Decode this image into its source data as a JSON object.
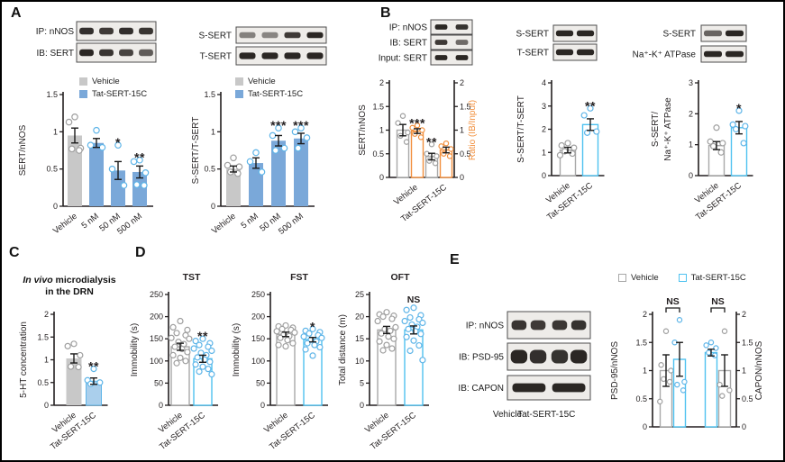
{
  "panels": {
    "A": "A",
    "B": "B",
    "C": "C",
    "D": "D",
    "E": "E"
  },
  "colors": {
    "gray_fill": "#c8c8c8",
    "blue_fill": "#7aa8d9",
    "light_blue_fill": "#aacfec",
    "gray_outline": "#a8a8a8",
    "blue_outline": "#4fc2f0",
    "orange": "#f2903e",
    "gray_point": "#9f9f9f",
    "blue_point": "#5fb5e8",
    "axis": "#231f20"
  },
  "panelC": {
    "title_italic": "In vivo",
    "title_rest": " microdialysis",
    "title_line2": "in the DRN"
  },
  "legends": {
    "a1": {
      "items": [
        {
          "label": "Vehicle",
          "swatch": "gray-fill"
        },
        {
          "label": "Tat-SERT-15C",
          "swatch": "blue-fill"
        }
      ]
    },
    "a2": {
      "items": [
        {
          "label": "Vehicle",
          "swatch": "gray-fill"
        },
        {
          "label": "Tat-SERT-15C",
          "swatch": "blue-fill"
        }
      ]
    },
    "e": {
      "items": [
        {
          "label": "Vehicle",
          "swatch": "gray-outline"
        },
        {
          "label": "Tat-SERT-15C",
          "swatch": "blue-outline"
        }
      ]
    }
  },
  "blots": [
    {
      "name": "A coIP blot",
      "rows": [
        {
          "label": "IP: nNOS",
          "bands": [
            0.95,
            0.85,
            0.95,
            0.9
          ]
        },
        {
          "label": "IB: SERT",
          "bands": [
            1,
            0.9,
            0.8,
            0.62
          ]
        }
      ]
    },
    {
      "name": "A surface blot",
      "rows": [
        {
          "label": "S-SERT",
          "bands": [
            0.35,
            0.32,
            0.85,
            1
          ]
        },
        {
          "label": "T-SERT",
          "bands": [
            1,
            1,
            1,
            1
          ]
        }
      ]
    },
    {
      "name": "B coIP blot",
      "rows": [
        {
          "label": "IP: nNOS",
          "bands": [
            1,
            0.92
          ]
        },
        {
          "label": "IB: SERT",
          "bands": [
            0.85,
            0.5
          ]
        },
        {
          "label": "Input: SERT",
          "bands": [
            1,
            1
          ]
        }
      ]
    },
    {
      "name": "B surface blot",
      "rows": [
        {
          "label": "S-SERT",
          "bands": [
            1,
            1
          ],
          "wide": true
        },
        {
          "label": "T-SERT",
          "bands": [
            1,
            1
          ],
          "wide": true
        }
      ]
    },
    {
      "name": "B membrane blot",
      "rows": [
        {
          "label": "S-SERT",
          "bands": [
            0.55,
            1
          ],
          "wide": true
        },
        {
          "label": "Na⁺-K⁺ ATPase",
          "bands": [
            1,
            1
          ],
          "wide": true
        }
      ]
    },
    {
      "name": "E coIP blot",
      "rows": [
        {
          "label": "IP: nNOS",
          "bands": [
            0.9,
            0.85,
            0.88,
            0.92
          ],
          "grouped": true
        },
        {
          "label": "IB: PSD-95",
          "bands": [
            1,
            0.95,
            0.92,
            1
          ],
          "grouped": true,
          "thick": true
        },
        {
          "label": "IB: CAPON",
          "bands": [
            1,
            1
          ],
          "wide": true
        }
      ],
      "xlabels": [
        "Vehicle",
        "Tat-SERT-15C"
      ]
    }
  ],
  "chart_data": [
    {
      "id": "A-sert-nnos",
      "type": "bar",
      "panel": "A",
      "ylabel": "SERT/nNOS",
      "ylim": [
        0,
        1.5
      ],
      "yticks": [
        0,
        0.5,
        1,
        1.5
      ],
      "categories": [
        "Vehicle",
        "5 nM",
        "50 nM",
        "500 nM"
      ],
      "bars": [
        {
          "style": "grayFill",
          "value": 0.95,
          "err": 0.1,
          "sig": "",
          "points": [
            1.2,
            1.13,
            0.78,
            0.77,
            0.75
          ],
          "pointStyle": "gray"
        },
        {
          "style": "blueFill",
          "value": 0.85,
          "err": 0.06,
          "sig": "",
          "points": [
            1.02,
            0.82,
            0.79
          ],
          "pointStyle": "blue"
        },
        {
          "style": "blueFill",
          "value": 0.48,
          "err": 0.12,
          "sig": "*",
          "points": [
            0.82,
            0.5,
            0.28
          ],
          "pointStyle": "blue"
        },
        {
          "style": "blueFill",
          "value": 0.46,
          "err": 0.08,
          "sig": "**",
          "points": [
            0.62,
            0.6,
            0.45,
            0.29,
            0.28
          ],
          "pointStyle": "blue"
        }
      ]
    },
    {
      "id": "A-ssert-tsert",
      "type": "bar",
      "panel": "A",
      "ylabel": "S-SERT/T-SERT",
      "ylim": [
        0,
        1.5
      ],
      "yticks": [
        0,
        0.5,
        1,
        1.5
      ],
      "categories": [
        "Vehicle",
        "5 nM",
        "50 nM",
        "500 nM"
      ],
      "bars": [
        {
          "style": "grayFill",
          "value": 0.5,
          "err": 0.04,
          "sig": "",
          "points": [
            0.65,
            0.55,
            0.53,
            0.46,
            0.44
          ],
          "pointStyle": "gray"
        },
        {
          "style": "blueFill",
          "value": 0.58,
          "err": 0.07,
          "sig": "",
          "points": [
            0.72,
            0.6,
            0.46
          ],
          "pointStyle": "blue"
        },
        {
          "style": "blueFill",
          "value": 0.88,
          "err": 0.07,
          "sig": "***",
          "points": [
            1.05,
            0.95,
            0.78,
            0.75
          ],
          "pointStyle": "blue"
        },
        {
          "style": "blueFill",
          "value": 0.91,
          "err": 0.07,
          "sig": "***",
          "points": [
            1.05,
            1.0,
            0.92,
            0.78
          ],
          "pointStyle": "blue"
        }
      ]
    },
    {
      "id": "B-sert-nnos-ratio",
      "type": "bar",
      "panel": "B",
      "ylabel": "SERT/nNOS",
      "ylabel2": "Ratio (IB/Input)",
      "ylabel2_color": "#f2903e",
      "ylim": [
        0,
        2
      ],
      "yticks": [
        0,
        0.5,
        1,
        1.5,
        2
      ],
      "yticks2": [
        0,
        0.5,
        1,
        1.5,
        2
      ],
      "categories": [
        "Vehicle",
        "Tat-SERT-15C"
      ],
      "bars": [
        {
          "style": "grayOutline",
          "value": 1.0,
          "err": 0.12,
          "sig": "",
          "points": [
            1.3,
            1.15,
            0.95,
            0.88,
            0.75
          ],
          "pointStyle": "gray"
        },
        {
          "style": "orangeOutline",
          "value": 0.98,
          "err": 0.05,
          "sig": "***",
          "points": [
            1.1,
            1.05,
            1.0,
            0.92,
            0.85
          ],
          "pointStyle": "orange"
        },
        {
          "style": "grayOutline",
          "value": 0.44,
          "err": 0.07,
          "sig": "**",
          "points": [
            0.7,
            0.5,
            0.45,
            0.35,
            0.3
          ],
          "pointStyle": "gray"
        },
        {
          "style": "orangeOutline",
          "value": 0.58,
          "err": 0.06,
          "sig": "",
          "points": [
            0.72,
            0.66,
            0.6,
            0.5,
            0.45
          ],
          "pointStyle": "orange"
        }
      ]
    },
    {
      "id": "B-ssert-tsert",
      "type": "bar",
      "panel": "B",
      "ylabel": "S-SERT/T-SERT",
      "ylim": [
        0,
        4
      ],
      "yticks": [
        0,
        1,
        2,
        3,
        4
      ],
      "categories": [
        "Vehicle",
        "Tat-SERT-15C"
      ],
      "bars": [
        {
          "style": "grayOutline",
          "value": 1.1,
          "err": 0.12,
          "sig": "",
          "points": [
            1.4,
            1.3,
            1.2,
            1.05,
            0.95,
            0.88
          ],
          "pointStyle": "gray"
        },
        {
          "style": "blueOutline",
          "value": 2.2,
          "err": 0.25,
          "sig": "**",
          "points": [
            2.9,
            2.6,
            1.9,
            1.85
          ],
          "pointStyle": "blue"
        }
      ]
    },
    {
      "id": "B-ssert-atpase",
      "type": "bar",
      "panel": "B",
      "ylabel": "S-SERT/",
      "ylabel_line2": "Na⁺-K⁺ ATPase",
      "ylim": [
        0,
        3
      ],
      "yticks": [
        0,
        1,
        2,
        3
      ],
      "categories": [
        "Vehicle",
        "Tat-SERT-15C"
      ],
      "bars": [
        {
          "style": "grayOutline",
          "value": 0.97,
          "err": 0.13,
          "sig": "",
          "points": [
            1.55,
            1.1,
            1.05,
            0.95,
            0.75
          ],
          "pointStyle": "gray"
        },
        {
          "style": "blueOutline",
          "value": 1.55,
          "err": 0.2,
          "sig": "*",
          "points": [
            2.1,
            1.65,
            1.6,
            1.5,
            1.05
          ],
          "pointStyle": "blue"
        }
      ]
    },
    {
      "id": "C-5ht",
      "type": "bar",
      "panel": "C",
      "ylabel": "5-HT concentration",
      "ylim": [
        0,
        2
      ],
      "yticks": [
        0,
        0.5,
        1,
        1.5,
        2
      ],
      "categories": [
        "Vehicle",
        "Tat-SERT-15C"
      ],
      "bars": [
        {
          "style": "grayFill",
          "value": 1.03,
          "err": 0.1,
          "sig": "",
          "points": [
            1.35,
            1.3,
            1.1,
            0.85,
            0.84
          ],
          "pointStyle": "gray"
        },
        {
          "style": "lightBlueFill",
          "value": 0.53,
          "err": 0.07,
          "sig": "**",
          "points": [
            0.8,
            0.55,
            0.5,
            0.47
          ],
          "pointStyle": "blue"
        }
      ]
    },
    {
      "id": "D-tst",
      "type": "bar",
      "panel": "D",
      "title": "TST",
      "ylabel": "Immobility (s)",
      "ylim": [
        0,
        250
      ],
      "yticks": [
        0,
        50,
        100,
        150,
        200,
        250
      ],
      "categories": [
        "Vehicle",
        "Tat-SERT-15C"
      ],
      "bars": [
        {
          "style": "grayOutline",
          "value": 132,
          "err": 8,
          "sig": "",
          "points": [
            190,
            176,
            170,
            163,
            158,
            152,
            150,
            143,
            138,
            132,
            127,
            120,
            113,
            107,
            100,
            95
          ],
          "pointStyle": "gray"
        },
        {
          "style": "blueOutline",
          "value": 105,
          "err": 8,
          "sig": "**",
          "points": [
            150,
            145,
            140,
            136,
            132,
            128,
            123,
            118,
            113,
            108,
            103,
            98,
            92,
            87,
            82,
            76,
            70
          ],
          "pointStyle": "blue"
        }
      ]
    },
    {
      "id": "D-fst",
      "type": "bar",
      "panel": "D",
      "title": "FST",
      "ylabel": "Immobility (s)",
      "ylim": [
        0,
        250
      ],
      "yticks": [
        0,
        50,
        100,
        150,
        200,
        250
      ],
      "categories": [
        "Vehicle",
        "Tat-SERT-15C"
      ],
      "bars": [
        {
          "style": "grayOutline",
          "value": 160,
          "err": 5,
          "sig": "",
          "points": [
            180,
            178,
            175,
            172,
            170,
            167,
            164,
            160,
            156,
            152,
            147,
            140,
            136,
            133
          ],
          "pointStyle": "gray"
        },
        {
          "style": "blueOutline",
          "value": 148,
          "err": 5,
          "sig": "*",
          "points": [
            172,
            168,
            165,
            162,
            158,
            155,
            152,
            148,
            144,
            140,
            136,
            131,
            126,
            112
          ],
          "pointStyle": "blue"
        }
      ]
    },
    {
      "id": "D-oft",
      "type": "bar",
      "panel": "D",
      "title": "OFT",
      "ylabel": "Total distance (m)",
      "ylim": [
        0,
        25
      ],
      "yticks": [
        0,
        5,
        10,
        15,
        20,
        25
      ],
      "categories": [
        "Vehicle",
        "Tat-SERT-15C"
      ],
      "bars": [
        {
          "style": "grayOutline",
          "value": 17,
          "err": 0.8,
          "sig": "",
          "points": [
            21,
            20.5,
            20.2,
            20,
            19.5,
            19,
            17.6,
            17.2,
            16.8,
            16.2,
            15.5,
            15,
            14.4,
            13.6,
            12.8,
            12.4
          ],
          "pointStyle": "gray"
        },
        {
          "style": "blueOutline",
          "value": 17,
          "err": 0.9,
          "sig": "NS",
          "points": [
            22,
            21.5,
            20.3,
            19.8,
            19.4,
            19,
            18.6,
            18.2,
            17.7,
            17.2,
            16.7,
            16.1,
            15.4,
            14.6,
            13.5,
            12.3,
            10.2
          ],
          "pointStyle": "blue"
        }
      ]
    },
    {
      "id": "E-psd95-capon",
      "type": "bar",
      "panel": "E",
      "ylabel": "PSD-95/nNOS",
      "ylabel2": "CAPON/nNOS",
      "ylabel2_color": "#231f20",
      "ylim": [
        0,
        2
      ],
      "yticks": [
        0,
        0.5,
        1,
        1.5,
        2
      ],
      "yticks2": [
        0,
        0.5,
        1,
        1.5,
        2
      ],
      "brackets": [
        {
          "from": 0,
          "to": 1,
          "label": "NS"
        },
        {
          "from": 2,
          "to": 3,
          "label": "NS"
        }
      ],
      "bars": [
        {
          "style": "grayOutline",
          "value": 1.0,
          "err": 0.28,
          "sig": "",
          "points": [
            1.7,
            1.1,
            1.0,
            0.85,
            0.8,
            0.45
          ],
          "pointStyle": "gray"
        },
        {
          "style": "blueOutline",
          "value": 1.2,
          "err": 0.3,
          "sig": "",
          "points": [
            1.9,
            1.5,
            0.8,
            0.75,
            0.65
          ],
          "pointStyle": "blue"
        },
        {
          "style": "blueOutline",
          "value": 1.32,
          "err": 0.06,
          "sig": "",
          "points": [
            1.5,
            1.45,
            1.4,
            1.32,
            1.27
          ],
          "pointStyle": "blue"
        },
        {
          "style": "grayOutline",
          "value": 1.0,
          "err": 0.28,
          "sig": "",
          "points": [
            1.7,
            0.75,
            0.65,
            0.55
          ],
          "pointStyle": "gray"
        }
      ]
    }
  ]
}
